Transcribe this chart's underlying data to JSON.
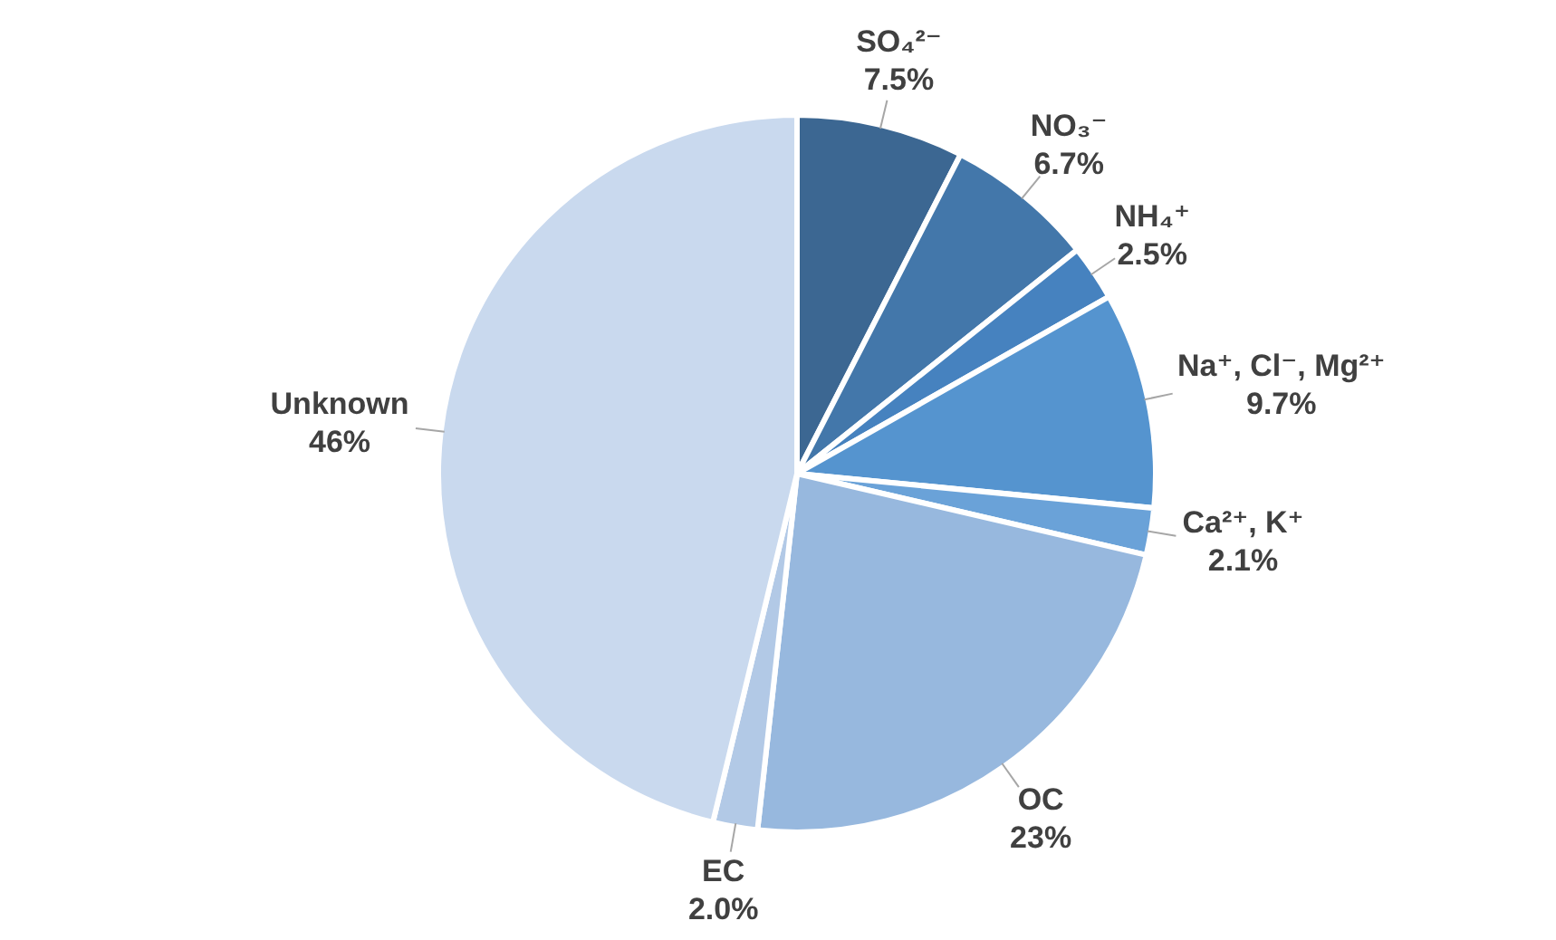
{
  "chart_data": {
    "type": "pie",
    "categories": [
      "SO₄²⁻",
      "NO₃⁻",
      "NH₄⁺",
      "Na⁺, Cl⁻, Mg²⁺",
      "Ca²⁺, K⁺",
      "OC",
      "EC",
      "Unknown"
    ],
    "values": [
      7.5,
      6.7,
      2.5,
      9.7,
      2.1,
      23,
      2.0,
      46
    ],
    "value_labels": [
      "7.5%",
      "6.7%",
      "2.5%",
      "9.7%",
      "2.1%",
      "23%",
      "2.0%",
      "46%"
    ],
    "colors": [
      "#3c6792",
      "#4377aa",
      "#4682bf",
      "#5594cf",
      "#6aa2d8",
      "#97b8de",
      "#b2c9e6",
      "#c9d9ee"
    ],
    "legend": false
  }
}
